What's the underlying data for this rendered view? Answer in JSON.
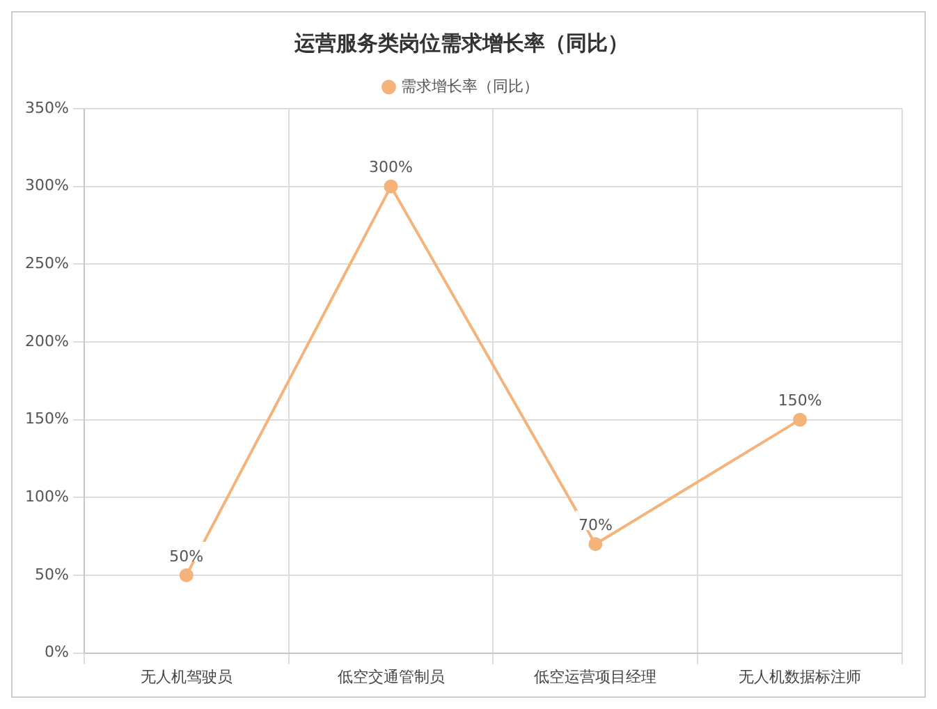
{
  "chart_data": {
    "type": "line",
    "title": "运营服务类岗位需求增长率（同比）",
    "categories": [
      "无人机驾驶员",
      "低空交通管制员",
      "低空运营项目经理",
      "无人机数据标注师"
    ],
    "series": [
      {
        "name": "需求增长率（同比）",
        "color": "#f5b37c",
        "values": [
          50,
          300,
          70,
          150
        ],
        "value_labels": [
          "50%",
          "300%",
          "70%",
          "150%"
        ]
      }
    ],
    "ylim": [
      0,
      350
    ],
    "yticks": [
      {
        "value": 0,
        "label": "0%"
      },
      {
        "value": 50,
        "label": "50%"
      },
      {
        "value": 100,
        "label": "100%"
      },
      {
        "value": 150,
        "label": "150%"
      },
      {
        "value": 200,
        "label": "200%"
      },
      {
        "value": 250,
        "label": "250%"
      },
      {
        "value": 300,
        "label": "300%"
      },
      {
        "value": 350,
        "label": "350%"
      }
    ],
    "grid": true,
    "legend": "top",
    "marker": "circle",
    "line_style": "solid"
  }
}
